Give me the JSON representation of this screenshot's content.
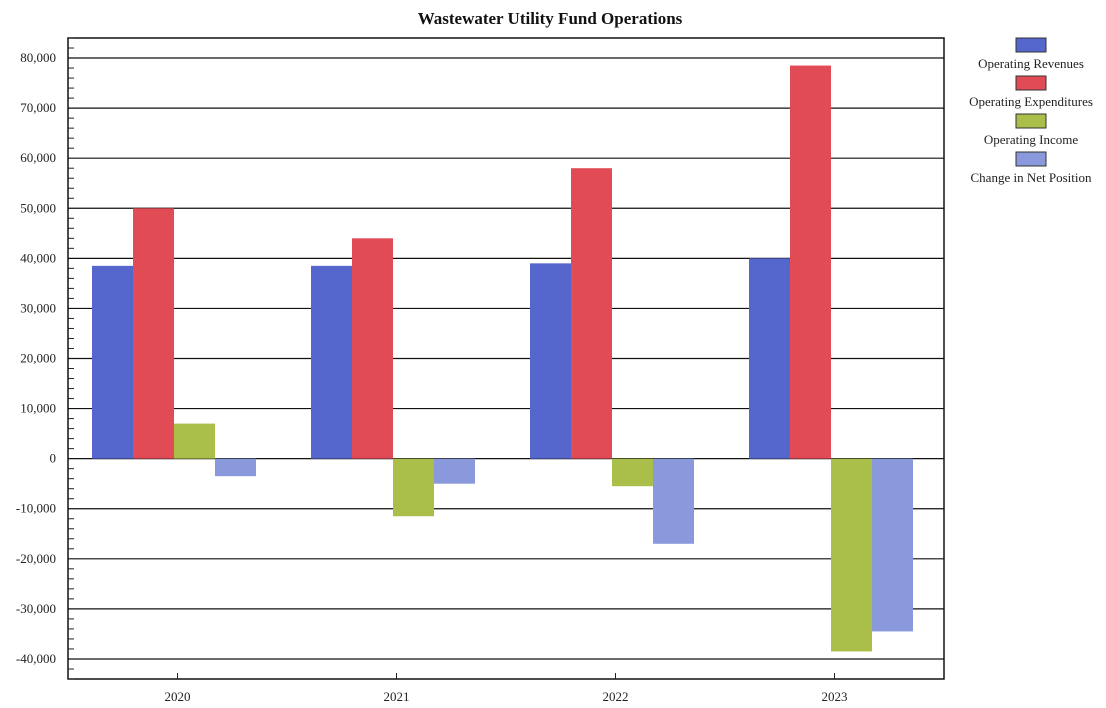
{
  "chart_data": {
    "type": "bar",
    "title": "Wastewater Utility Fund Operations",
    "xlabel": "",
    "ylabel": "",
    "categories": [
      "2020",
      "2021",
      "2022",
      "2023"
    ],
    "ylim": [
      -44000,
      84000
    ],
    "yticks": [
      80000,
      70000,
      60000,
      50000,
      40000,
      30000,
      20000,
      10000,
      0,
      -10000,
      -20000,
      -30000,
      -40000
    ],
    "ytick_labels": [
      "80,000",
      "70,000",
      "60,000",
      "50,000",
      "40,000",
      "30,000",
      "20,000",
      "10,000",
      "0",
      "-10,000",
      "-20,000",
      "-30,000",
      "-40,000"
    ],
    "grid": true,
    "legend_position": "right",
    "series": [
      {
        "name": "Operating Revenues",
        "color": "#5566cc",
        "values": [
          38500,
          38500,
          39000,
          40000
        ]
      },
      {
        "name": "Operating Expenditures",
        "color": "#e04b55",
        "values": [
          50000,
          44000,
          58000,
          78500
        ]
      },
      {
        "name": "Operating Income",
        "color": "#a9bf4a",
        "values": [
          7000,
          -11500,
          -5500,
          -38500
        ]
      },
      {
        "name": "Change in Net Position",
        "color": "#8a98dc",
        "values": [
          -3500,
          -5000,
          -17000,
          -34500
        ]
      }
    ]
  }
}
